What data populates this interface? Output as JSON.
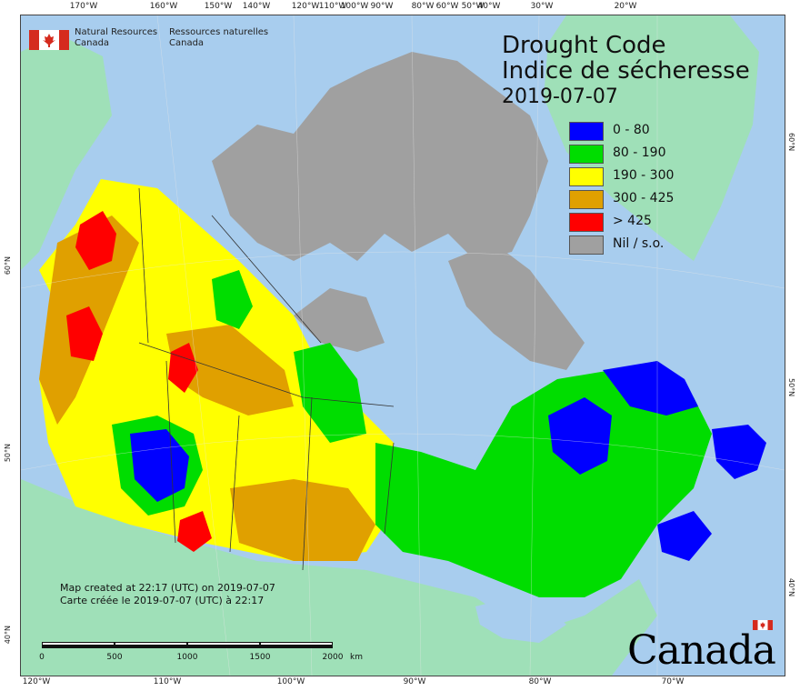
{
  "agency": {
    "name_en": "Natural Resources\nCanada",
    "name_fr": "Ressources naturelles\nCanada"
  },
  "title": {
    "line1": "Drought Code",
    "line2": "Indice de sécheresse",
    "date": "2019-07-07"
  },
  "legend": [
    {
      "label": "0 - 80",
      "color": "#0000ff"
    },
    {
      "label": "80 - 190",
      "color": "#00dd00"
    },
    {
      "label": "190 - 300",
      "color": "#ffff00"
    },
    {
      "label": "300 - 425",
      "color": "#e0a000"
    },
    {
      "label": "> 425",
      "color": "#ff0000"
    },
    {
      "label": "Nil / s.o.",
      "color": "#a0a0a0"
    }
  ],
  "credits": {
    "line_en": "Map created at 22:17 (UTC) on 2019-07-07",
    "line_fr": "Carte créée le 2019-07-07 (UTC) à 22:17"
  },
  "scalebar": {
    "labels": [
      "0",
      "500",
      "1000",
      "1500",
      "2000"
    ],
    "unit": "km"
  },
  "graticule": {
    "top": [
      "170°W",
      "160°W",
      "150°W",
      "140°W",
      "120°W",
      "110°W",
      "100°W",
      "90°W",
      "80°W",
      "60°W",
      "50°W",
      "40°W",
      "30°W",
      "20°W"
    ],
    "bottom": [
      "120°W",
      "110°W",
      "100°W",
      "90°W",
      "80°W",
      "70°W"
    ],
    "left": [
      "60°N",
      "50°N",
      "40°N"
    ],
    "right": [
      "60°N",
      "50°N",
      "40°N"
    ]
  },
  "wordmark": "Canada",
  "colors": {
    "ocean": "#a8cdee",
    "foreign_land": "#9fe0b8",
    "nil_grey": "#a0a0a0",
    "boundary": "#333333"
  }
}
